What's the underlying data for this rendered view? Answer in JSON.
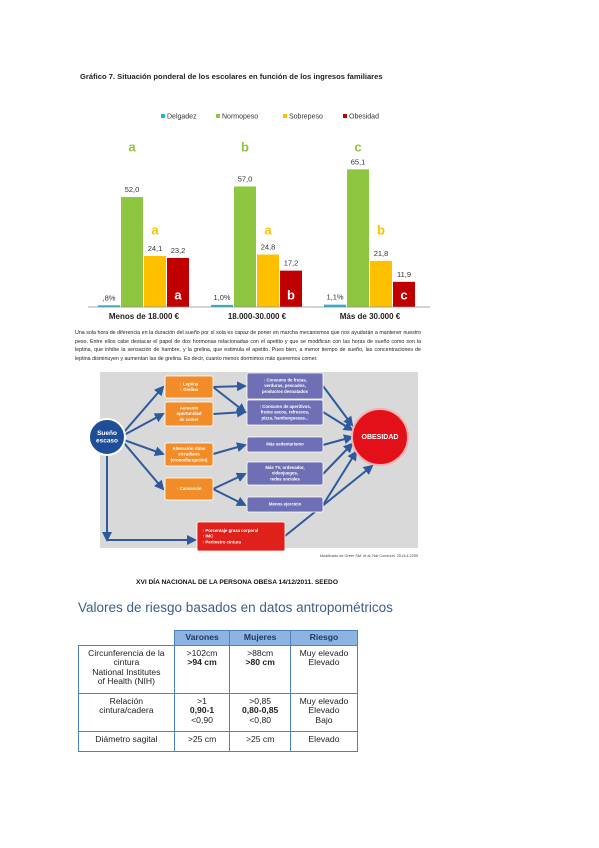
{
  "chart_data": {
    "type": "bar",
    "title": "Gráfico 7. Situación ponderal de los escolares en función de los ingresos familiares",
    "categories": [
      "Menos de 18.000 €",
      "18.000-30.000 €",
      "Más de 30.000 €"
    ],
    "series": [
      {
        "name": "Delgadez",
        "color": "#1fb4e0",
        "values": [
          0.8,
          1.0,
          1.1
        ],
        "value_labels": [
          ",8%",
          "1,0%",
          "1,1%"
        ]
      },
      {
        "name": "Normopeso",
        "color": "#8dc63f",
        "values": [
          52.0,
          57.0,
          65.1
        ],
        "value_labels": [
          "52,0",
          "57,0",
          "65,1"
        ],
        "letters": [
          "a",
          "b",
          "c"
        ]
      },
      {
        "name": "Sobrepeso",
        "color": "#ffc000",
        "values": [
          24.1,
          24.8,
          21.8
        ],
        "value_labels": [
          "24,1",
          "24,8",
          "21,8"
        ],
        "letters": [
          "a",
          "a",
          "b"
        ]
      },
      {
        "name": "Obesidad",
        "color": "#c00000",
        "values": [
          23.2,
          17.2,
          11.9
        ],
        "value_labels": [
          "23,2",
          "17,2",
          "11,9"
        ],
        "letters": [
          "a",
          "b",
          "c"
        ]
      }
    ],
    "ylim": [
      0,
      70
    ]
  },
  "paragraph": "Una sola hora de diferencia en la duración del sueño por sí sola es capaz de poner en marcha mecanismos que nos ayudarán a mantener nuestro peso. Entre ellos cabe destacar el papel de dos hormonas relacionadas con el apetito y que se modifican con las horas de sueño como son la leptina, que inhibe la sensación de hambre, y la grelina, que estimula el apetito. Pues bien, a menor tiempo de sueño, las concentraciones de leptina disminuyen y aumentan las de grelina. Es decir, cuanto menos dormimos más queremos comer.",
  "diagram": {
    "nodes": [
      {
        "lines": [
          "Sueño",
          "escaso"
        ]
      },
      {
        "lines": [
          "↓ Leptina",
          "↑ Grelina"
        ]
      },
      {
        "lines": [
          "Aumento",
          "oportunidad",
          "de comer"
        ]
      },
      {
        "lines": [
          "Alteración ritmo",
          "circadiano",
          "(cronodisrupción)"
        ]
      },
      {
        "lines": [
          "↑ Cansancio"
        ]
      },
      {
        "lines": [
          "↓ Consumo de frutas,",
          "verduras, pescados,",
          "productos desnatados"
        ]
      },
      {
        "lines": [
          "↑ Consumo de aperitivos,",
          "frutos secos, refrescos,",
          "pizza, hamburguesas..."
        ]
      },
      {
        "lines": [
          "Más sedentarismo"
        ]
      },
      {
        "lines": [
          "Más TV, ordenador,",
          "videojuegos,",
          "redes sociales"
        ]
      },
      {
        "lines": [
          "Menos ejercicio"
        ]
      },
      {
        "lines": [
          "↑ Porcentaje grasa corporal",
          "↑ IMC",
          "↑ Perímetro cintura"
        ]
      },
      {
        "lines": [
          "OBESIDAD"
        ]
      }
    ],
    "caption": "Modificado de Greer SM, et al. Nat Commun. 2013;4:2259"
  },
  "event_heading": "XVI DÍA NACIONAL DE LA PERSONA OBESA 14/12/2011. SEEDO",
  "table": {
    "title": "Valores de riesgo basados en datos antropométricos",
    "header": [
      "Varones",
      "Mujeres",
      "Riesgo"
    ],
    "rows": [
      [
        [
          "Circunferencia de la",
          "cintura",
          "National Institutes",
          "of Health (NIH)"
        ],
        [
          ">102cm",
          ">94 cm"
        ],
        [
          ">88cm",
          ">80 cm"
        ],
        [
          "Muy elevado",
          "Elevado"
        ]
      ],
      [
        [
          "Relación",
          "cintura/cadera"
        ],
        [
          ">1",
          "0,90-1",
          "<0,90"
        ],
        [
          ">0,85",
          "0,80-0,85",
          "<0,80"
        ],
        [
          "Muy elevado",
          "Elevado",
          "Bajo"
        ]
      ],
      [
        [
          "Diámetro sagital"
        ],
        [
          ">25 cm"
        ],
        [
          ">25 cm"
        ],
        [
          "Elevado"
        ]
      ]
    ]
  }
}
